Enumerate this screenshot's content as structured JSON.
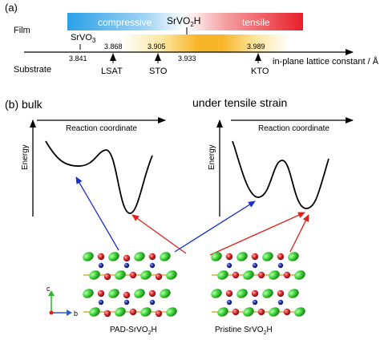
{
  "panel_a": {
    "label": "(a)",
    "film_label": "Film",
    "substrate_label": "Substrate",
    "compressive_label": "compressive",
    "tensile_label": "tensile",
    "film_compound": "SrVO",
    "film_compound_sub": "2",
    "film_compound_end": "H",
    "axis_label": "in-plane lattice constant / Å",
    "srvo3_base": "SrVO",
    "srvo3_sub": "3",
    "ticks": [
      {
        "value": "3.841",
        "name": ""
      },
      {
        "value": "3.868",
        "name": "LSAT"
      },
      {
        "value": "3.905",
        "name": "STO"
      },
      {
        "value": "3.933",
        "name": ""
      },
      {
        "value": "3.989",
        "name": "KTO"
      }
    ]
  },
  "panel_b": {
    "label": "(b) bulk",
    "right_title": "under tensile strain",
    "reaction_coordinate": "Reaction coordinate",
    "energy_label": "Energy",
    "crystal_left_label_base": "PAD-SrVO",
    "crystal_left_label_sub": "2",
    "crystal_left_label_end": "H",
    "crystal_right_label_base": "Pristine SrVO",
    "crystal_right_label_sub": "2",
    "crystal_right_label_end": "H",
    "axis_c": "c",
    "axis_b": "b"
  },
  "colors": {
    "blue_arrow": "#1a2fd0",
    "red_arrow": "#e0201a",
    "compressive_blue": "#2aa0e8",
    "tensile_red": "#e8202a",
    "sr_green": "#3fd23a",
    "o_red": "#d8252a",
    "v_blue": "#1f2aa8",
    "h_tan": "#d9c27a"
  }
}
